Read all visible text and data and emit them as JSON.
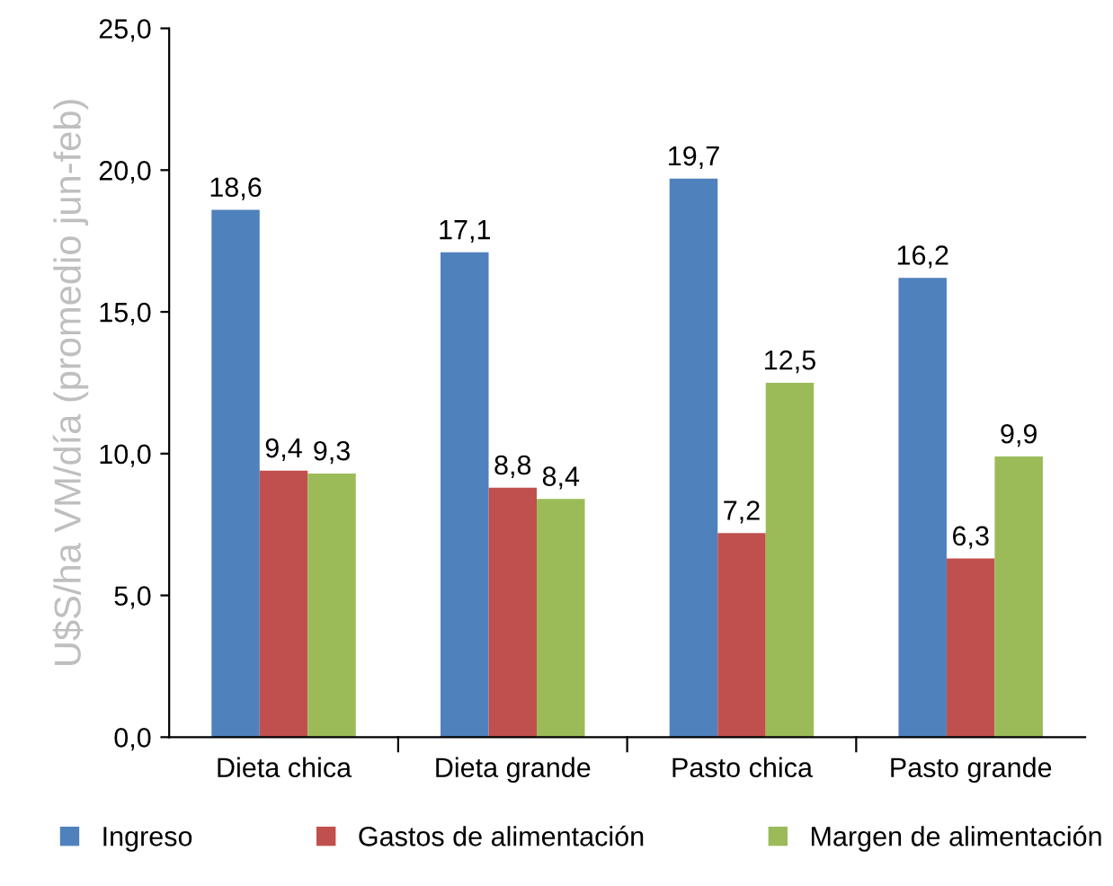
{
  "chart_data": {
    "type": "bar",
    "ylabel": "U$S/ha VM/día (promedio jun-feb)",
    "categories": [
      "Dieta chica",
      "Dieta grande",
      "Pasto chica",
      "Pasto grande"
    ],
    "series": [
      {
        "name": "Ingreso",
        "color": "#4f81bd",
        "values": [
          18.6,
          17.1,
          19.7,
          16.2
        ],
        "value_labels": [
          "18,6",
          "17,1",
          "19,7",
          "16,2"
        ]
      },
      {
        "name": "Gastos de alimentación",
        "color": "#c0504d",
        "values": [
          9.4,
          8.8,
          7.2,
          6.3
        ],
        "value_labels": [
          "9,4",
          "8,8",
          "7,2",
          "6,3"
        ]
      },
      {
        "name": "Margen de alimentación",
        "color": "#9bbb59",
        "values": [
          9.3,
          8.4,
          12.5,
          9.9
        ],
        "value_labels": [
          "9,3",
          "8,4",
          "12,5",
          "9,9"
        ]
      }
    ],
    "ylim": [
      0,
      25
    ],
    "yticks": [
      {
        "value": 0,
        "label": "0,0"
      },
      {
        "value": 5,
        "label": "5,0"
      },
      {
        "value": 10,
        "label": "10,0"
      },
      {
        "value": 15,
        "label": "15,0"
      },
      {
        "value": 20,
        "label": "20,0"
      },
      {
        "value": 25,
        "label": "25,0"
      }
    ],
    "grid": false,
    "legend": "bottom"
  }
}
